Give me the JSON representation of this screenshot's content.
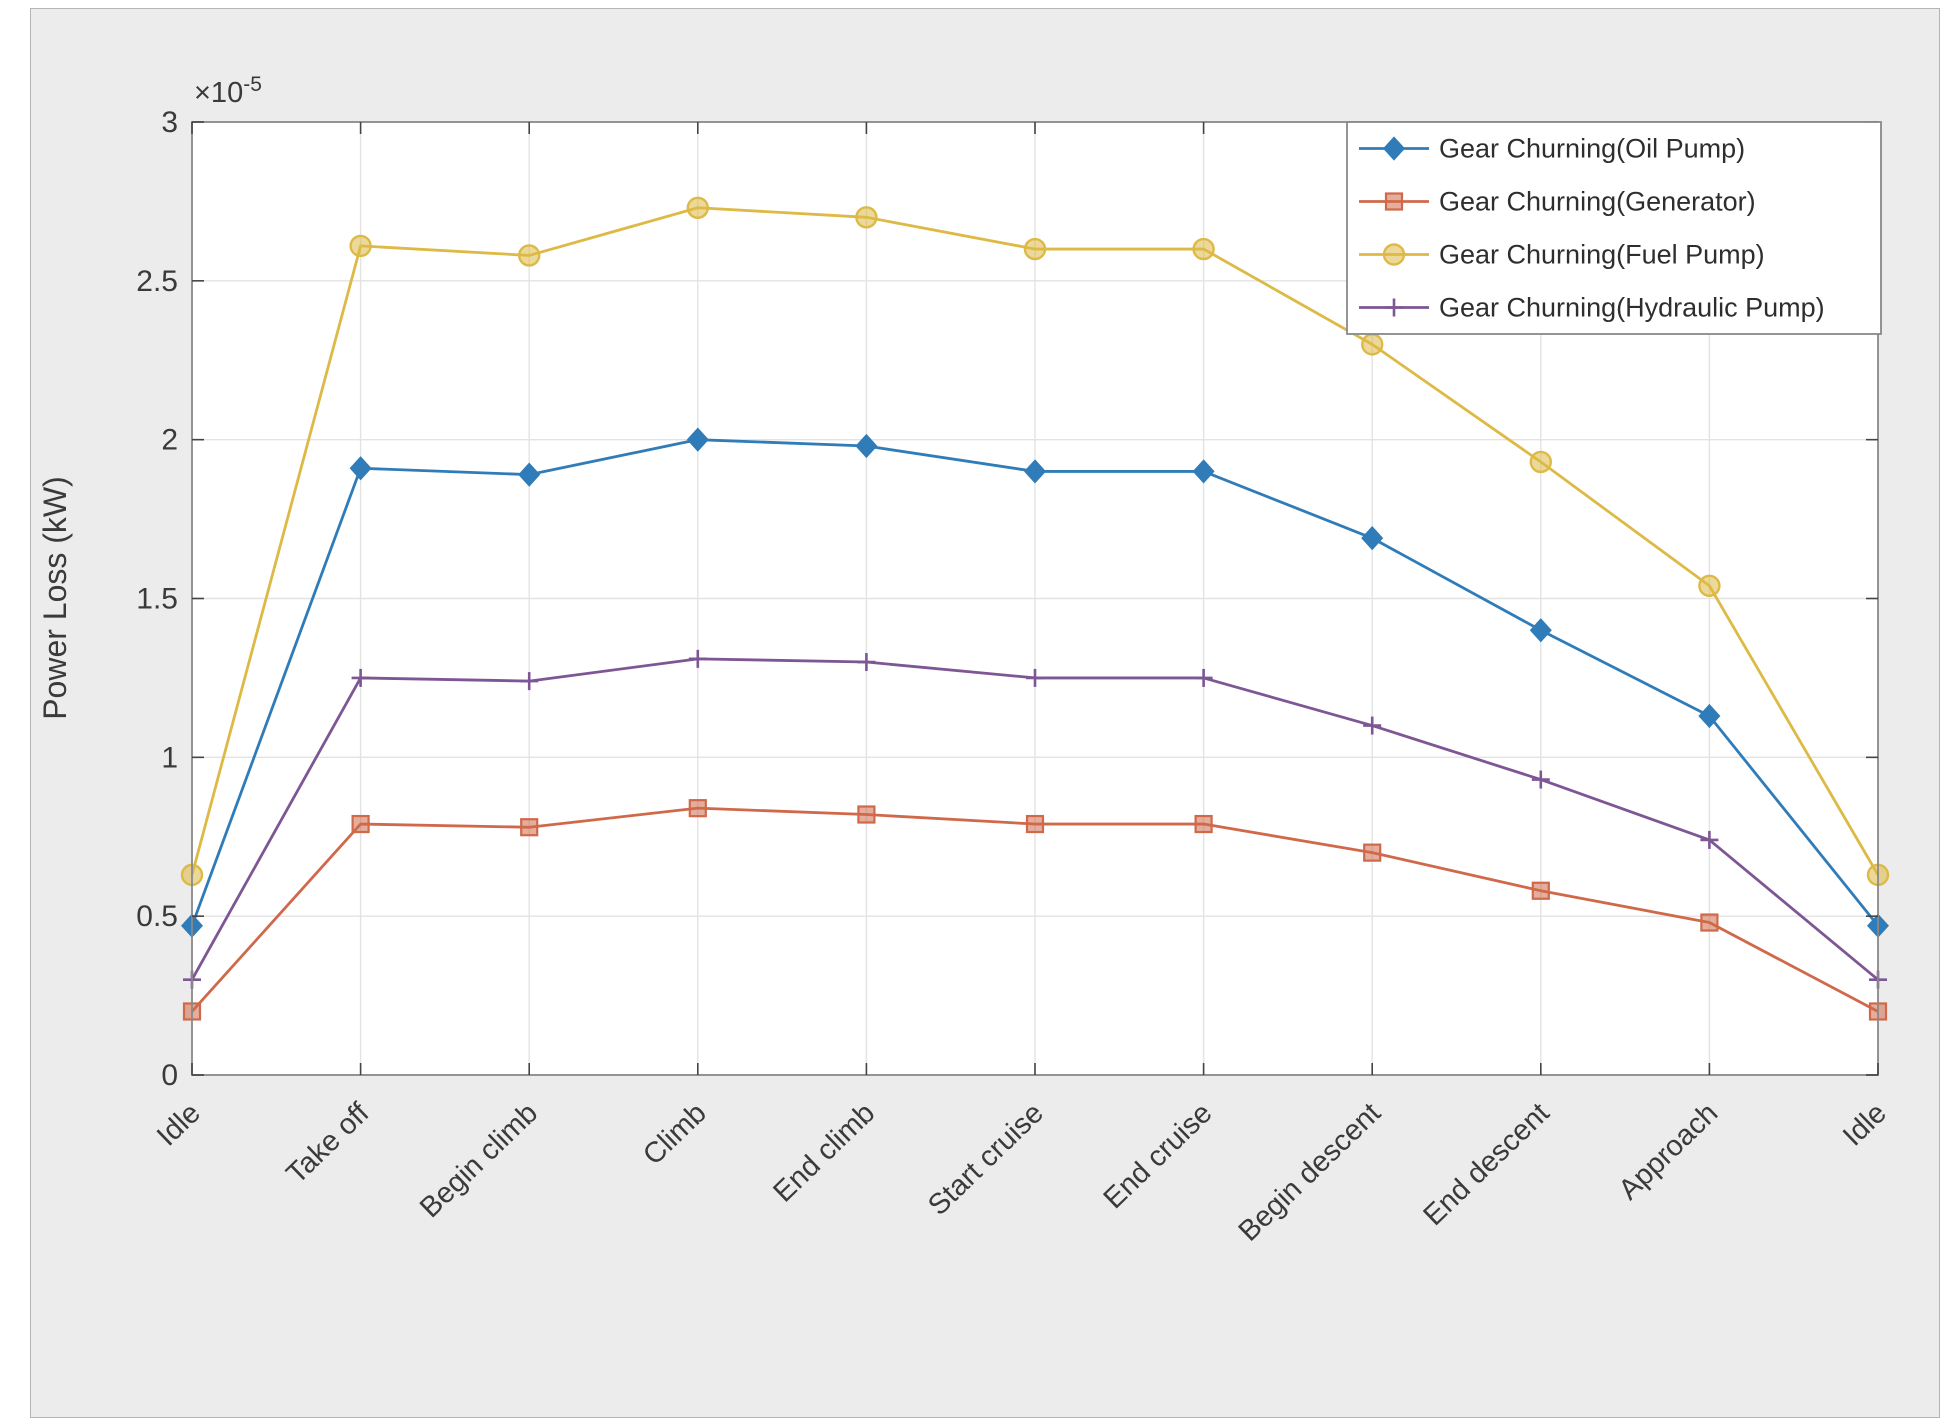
{
  "figure": {
    "background_color": "#ececec",
    "plot_background_color": "#ffffff",
    "frame_color": "#898989",
    "grid_color": "#e3e3e3",
    "tick_color": "#444444",
    "label_color": "#3a3a3a"
  },
  "chart_data": {
    "type": "line",
    "title": "",
    "xlabel": "",
    "ylabel": "Power Loss (kW)",
    "y_exponent_base": "×10",
    "y_exponent_sup": "-5",
    "ylim": [
      0,
      3
    ],
    "yticks": [
      0,
      0.5,
      1,
      1.5,
      2,
      2.5,
      3
    ],
    "ytick_labels": [
      "0",
      "0.5",
      "1",
      "1.5",
      "2",
      "2.5",
      "3"
    ],
    "values_scale": "1e-5",
    "grid": true,
    "legend_position": "top-right",
    "categories": [
      "Idle",
      "Take off",
      "Begin climb",
      "Climb",
      "End climb",
      "Start cruise",
      "End cruise",
      "Begin descent",
      "End descent",
      "Approach",
      "Idle"
    ],
    "series": [
      {
        "name": "Gear Churning(Oil Pump)",
        "color": "#2f7cb8",
        "marker": "diamond",
        "values": [
          0.47,
          1.91,
          1.89,
          2.0,
          1.98,
          1.9,
          1.9,
          1.69,
          1.4,
          1.13,
          0.47
        ]
      },
      {
        "name": "Gear Churning(Generator)",
        "color": "#d0694a",
        "marker": "square",
        "values": [
          0.2,
          0.79,
          0.78,
          0.84,
          0.82,
          0.79,
          0.79,
          0.7,
          0.58,
          0.48,
          0.2
        ]
      },
      {
        "name": "Gear Churning(Fuel Pump)",
        "color": "#ddb945",
        "marker": "circle",
        "values": [
          0.63,
          2.61,
          2.58,
          2.73,
          2.7,
          2.6,
          2.6,
          2.3,
          1.93,
          1.54,
          0.63
        ]
      },
      {
        "name": "Gear Churning(Hydraulic Pump)",
        "color": "#7e5694",
        "marker": "plus",
        "values": [
          0.3,
          1.25,
          1.24,
          1.31,
          1.3,
          1.25,
          1.25,
          1.1,
          0.93,
          0.74,
          0.3
        ]
      }
    ]
  }
}
